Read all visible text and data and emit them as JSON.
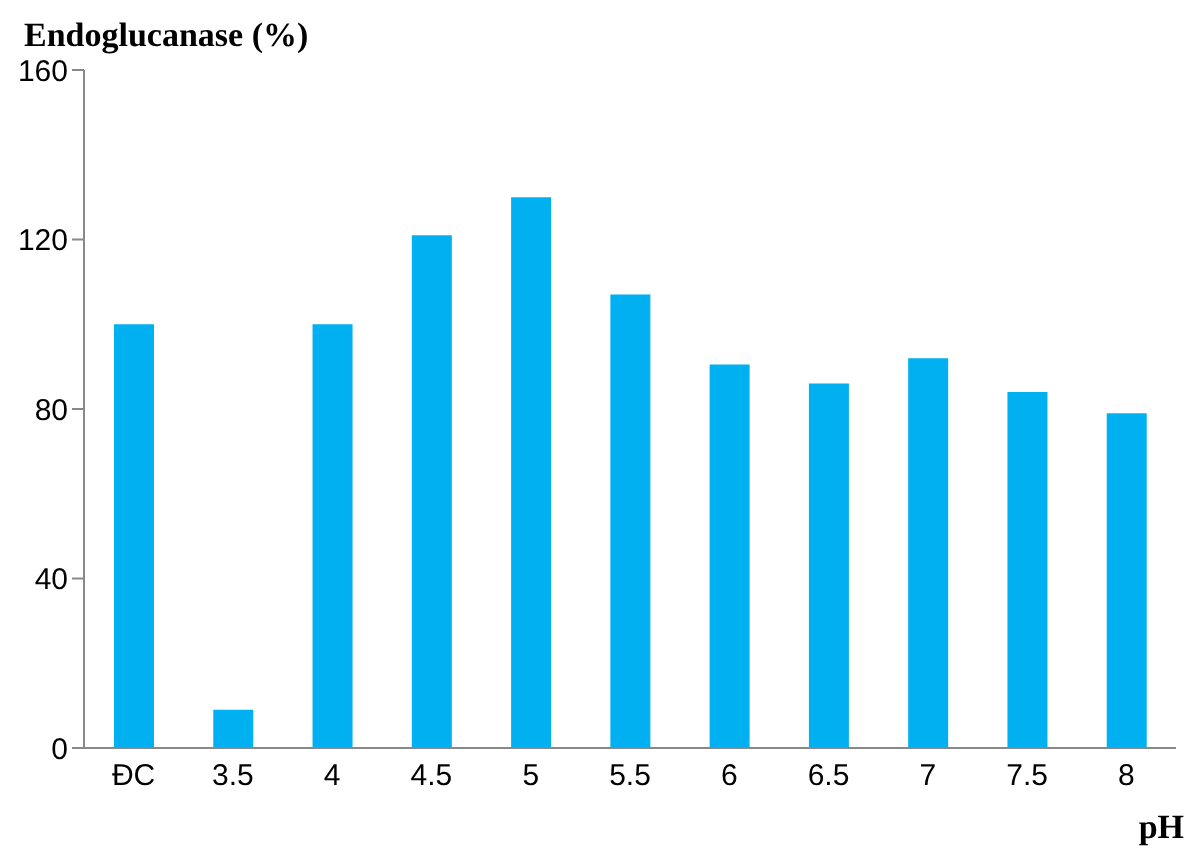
{
  "chart_data": {
    "type": "bar",
    "title": "Endoglucanase (%)",
    "xlabel": "pH",
    "categories": [
      "ĐC",
      "3.5",
      "4",
      "4.5",
      "5",
      "5.5",
      "6",
      "6.5",
      "7",
      "7.5",
      "8"
    ],
    "values": [
      100,
      9,
      100,
      121,
      130,
      107,
      90.5,
      86,
      92,
      84,
      79
    ],
    "color": "#00b0f0",
    "ylim": [
      0,
      160
    ],
    "yticks": [
      0,
      40,
      80,
      120,
      160
    ],
    "grid": false,
    "legend": false
  }
}
